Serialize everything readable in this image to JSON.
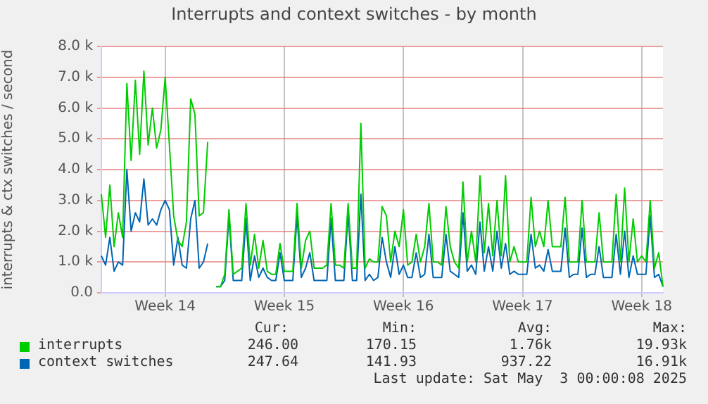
{
  "chart_data": {
    "type": "line",
    "title": "Interrupts and context switches - by month",
    "ylabel": "interrupts & ctx switches / second",
    "categories": [
      null,
      null,
      null,
      null,
      null,
      null,
      null,
      null,
      null,
      null,
      null,
      null,
      null,
      null,
      null,
      "Week 14",
      null,
      null,
      null,
      null,
      null,
      null,
      null,
      null,
      null,
      null,
      null,
      null,
      null,
      null,
      null,
      null,
      null,
      null,
      null,
      null,
      null,
      null,
      null,
      null,
      null,
      null,
      null,
      "Week 15",
      null,
      null,
      null,
      null,
      null,
      null,
      null,
      null,
      null,
      null,
      null,
      null,
      null,
      null,
      null,
      null,
      null,
      null,
      null,
      null,
      null,
      null,
      null,
      null,
      null,
      null,
      null,
      "Week 16",
      null,
      null,
      null,
      null,
      null,
      null,
      null,
      null,
      null,
      null,
      null,
      null,
      null,
      null,
      null,
      null,
      null,
      null,
      null,
      null,
      null,
      null,
      null,
      null,
      null,
      null,
      null,
      "Week 17",
      null,
      null,
      null,
      null,
      null,
      null,
      null,
      null,
      null,
      null,
      null,
      null,
      null,
      null,
      null,
      null,
      null,
      null,
      null,
      null,
      null,
      null,
      null,
      null,
      null,
      null,
      null,
      "Week 18",
      null,
      null,
      null,
      null,
      null
    ],
    "series": [
      {
        "name": "interrupts",
        "color": "#00cc00",
        "values": [
          3200,
          1800,
          3500,
          1500,
          2600,
          1800,
          6800,
          4300,
          6900,
          4500,
          7200,
          4800,
          6000,
          4700,
          5300,
          7000,
          4800,
          2500,
          1700,
          1500,
          2300,
          6300,
          5800,
          2500,
          2600,
          4900,
          null,
          200,
          200,
          600,
          2700,
          600,
          700,
          800,
          2900,
          900,
          1900,
          800,
          1700,
          700,
          600,
          600,
          1600,
          700,
          700,
          700,
          2900,
          800,
          1700,
          2000,
          800,
          800,
          800,
          900,
          2900,
          900,
          900,
          800,
          2900,
          800,
          800,
          5500,
          800,
          1100,
          1000,
          1000,
          2800,
          2500,
          1000,
          2000,
          1500,
          2700,
          900,
          1000,
          1900,
          1000,
          1500,
          2900,
          1000,
          1000,
          900,
          2800,
          1500,
          1000,
          800,
          3600,
          1000,
          2000,
          1000,
          3800,
          1300,
          2900,
          1200,
          3000,
          1200,
          3800,
          1000,
          1500,
          1000,
          1000,
          1000,
          3100,
          1500,
          2000,
          1500,
          3000,
          1500,
          1500,
          1500,
          3100,
          1000,
          1000,
          1000,
          3000,
          1000,
          1000,
          1000,
          2600,
          1000,
          1000,
          1000,
          3200,
          1000,
          3400,
          1000,
          2400,
          1000,
          1200,
          1000,
          3000,
          800,
          1300,
          200
        ]
      },
      {
        "name": "context switches",
        "color": "#0066b3",
        "values": [
          1200,
          900,
          1800,
          700,
          1000,
          900,
          4000,
          2000,
          2600,
          2300,
          3700,
          2200,
          2400,
          2200,
          2700,
          3000,
          2700,
          900,
          1800,
          900,
          800,
          2400,
          3000,
          800,
          1000,
          1600,
          null,
          200,
          200,
          400,
          2500,
          400,
          400,
          400,
          2400,
          400,
          1200,
          500,
          800,
          500,
          400,
          400,
          1300,
          400,
          400,
          400,
          2500,
          500,
          800,
          1300,
          400,
          400,
          400,
          400,
          2400,
          400,
          400,
          400,
          2600,
          400,
          400,
          3200,
          400,
          600,
          400,
          500,
          1800,
          1000,
          500,
          1500,
          600,
          900,
          500,
          500,
          1300,
          500,
          600,
          1900,
          500,
          500,
          500,
          1900,
          700,
          600,
          500,
          2600,
          700,
          900,
          600,
          2300,
          700,
          1500,
          700,
          2000,
          800,
          1600,
          600,
          700,
          600,
          600,
          600,
          1900,
          800,
          900,
          700,
          1400,
          700,
          700,
          700,
          2100,
          500,
          600,
          600,
          2100,
          500,
          600,
          600,
          1500,
          500,
          500,
          500,
          1900,
          600,
          2000,
          500,
          1200,
          600,
          600,
          600,
          2500,
          500,
          600,
          200
        ]
      }
    ],
    "ylim": [
      0,
      8000
    ],
    "yticks": [
      {
        "value": 0,
        "label": "0.0"
      },
      {
        "value": 1000,
        "label": "1.0 k"
      },
      {
        "value": 2000,
        "label": "2.0 k"
      },
      {
        "value": 3000,
        "label": "3.0 k"
      },
      {
        "value": 4000,
        "label": "4.0 k"
      },
      {
        "value": 5000,
        "label": "5.0 k"
      },
      {
        "value": 6000,
        "label": "6.0 k"
      },
      {
        "value": 7000,
        "label": "7.0 k"
      },
      {
        "value": 8000,
        "label": "8.0 k"
      }
    ],
    "grid": true,
    "legend": "bottom",
    "annotations": [
      "Cur:",
      "Min:",
      "Avg:",
      "Max:",
      "246.00",
      "170.15",
      "1.76k",
      "19.93k",
      "247.64",
      "141.93",
      "937.22",
      "16.91k",
      "Last update: Sat May  3 00:00:08 2025"
    ]
  }
}
